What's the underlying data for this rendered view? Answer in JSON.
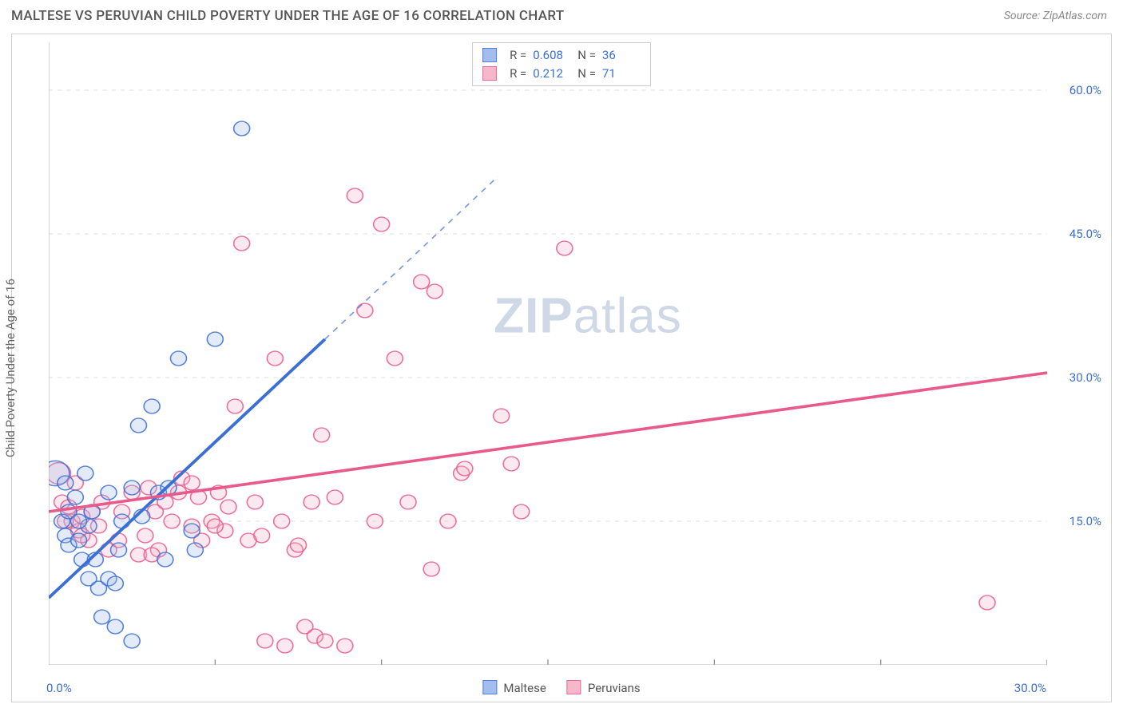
{
  "header": {
    "title": "MALTESE VS PERUVIAN CHILD POVERTY UNDER THE AGE OF 16 CORRELATION CHART",
    "source": "Source: ZipAtlas.com"
  },
  "chart": {
    "type": "scatter",
    "ylabel": "Child Poverty Under the Age of 16",
    "xlim": [
      0,
      30
    ],
    "ylim": [
      0,
      65
    ],
    "x_ticks": [
      {
        "v": 0,
        "label": "0.0%"
      },
      {
        "v": 30,
        "label": "30.0%"
      }
    ],
    "y_ticks": [
      {
        "v": 15,
        "label": "15.0%"
      },
      {
        "v": 30,
        "label": "30.0%"
      },
      {
        "v": 45,
        "label": "45.0%"
      },
      {
        "v": 60,
        "label": "60.0%"
      }
    ],
    "x_grid_at": [
      5,
      10,
      15,
      20,
      25,
      30
    ],
    "background_color": "#ffffff",
    "grid_color": "#dddddd",
    "axis_color": "#cccccc",
    "tick_label_color": "#3b6fd6",
    "marker_radius": 8,
    "marker_radius_large": 14,
    "marker_fill_opacity": 0.28,
    "marker_stroke_opacity": 0.85,
    "line_width": 2.2,
    "series": {
      "maltese": {
        "label": "Maltese",
        "color": "#3b6fd6",
        "fill": "#9ab8ea",
        "stats": {
          "R": "0.608",
          "N": "36"
        },
        "trend": {
          "x1": 0,
          "y1": 7,
          "x2": 8.3,
          "y2": 34,
          "ext_x2": 13.5,
          "ext_y2": 51
        },
        "points": [
          {
            "x": 0.2,
            "y": 20,
            "r": 14
          },
          {
            "x": 0.5,
            "y": 19
          },
          {
            "x": 0.4,
            "y": 15
          },
          {
            "x": 0.6,
            "y": 16
          },
          {
            "x": 0.5,
            "y": 13.5
          },
          {
            "x": 0.6,
            "y": 12.5
          },
          {
            "x": 0.8,
            "y": 17.5
          },
          {
            "x": 0.9,
            "y": 13
          },
          {
            "x": 1.0,
            "y": 11
          },
          {
            "x": 1.1,
            "y": 20
          },
          {
            "x": 1.2,
            "y": 9
          },
          {
            "x": 1.2,
            "y": 14.5
          },
          {
            "x": 1.3,
            "y": 16
          },
          {
            "x": 1.5,
            "y": 8
          },
          {
            "x": 1.6,
            "y": 5
          },
          {
            "x": 1.8,
            "y": 18
          },
          {
            "x": 1.8,
            "y": 9
          },
          {
            "x": 2.0,
            "y": 8.5
          },
          {
            "x": 2.0,
            "y": 4
          },
          {
            "x": 2.1,
            "y": 12
          },
          {
            "x": 2.2,
            "y": 15
          },
          {
            "x": 2.5,
            "y": 18.5
          },
          {
            "x": 2.5,
            "y": 2.5
          },
          {
            "x": 2.7,
            "y": 25
          },
          {
            "x": 3.1,
            "y": 27
          },
          {
            "x": 3.3,
            "y": 18
          },
          {
            "x": 3.5,
            "y": 11
          },
          {
            "x": 3.6,
            "y": 18.5
          },
          {
            "x": 3.9,
            "y": 32
          },
          {
            "x": 4.3,
            "y": 14
          },
          {
            "x": 4.4,
            "y": 12
          },
          {
            "x": 5.0,
            "y": 34
          },
          {
            "x": 5.8,
            "y": 56
          },
          {
            "x": 2.8,
            "y": 15.5
          },
          {
            "x": 1.4,
            "y": 11
          },
          {
            "x": 0.9,
            "y": 15
          }
        ]
      },
      "peruvians": {
        "label": "Peruvians",
        "color": "#e85a8a",
        "fill": "#f4b0c4",
        "stats": {
          "R": "0.212",
          "N": "71"
        },
        "trend": {
          "x1": 0,
          "y1": 16,
          "x2": 30,
          "y2": 30.5
        },
        "points": [
          {
            "x": 0.3,
            "y": 20,
            "r": 12
          },
          {
            "x": 0.4,
            "y": 17
          },
          {
            "x": 0.6,
            "y": 16.5
          },
          {
            "x": 0.7,
            "y": 15
          },
          {
            "x": 0.8,
            "y": 19
          },
          {
            "x": 0.9,
            "y": 14
          },
          {
            "x": 1.0,
            "y": 15.5
          },
          {
            "x": 1.2,
            "y": 13
          },
          {
            "x": 1.3,
            "y": 16
          },
          {
            "x": 1.5,
            "y": 14.5
          },
          {
            "x": 1.6,
            "y": 17
          },
          {
            "x": 1.8,
            "y": 12
          },
          {
            "x": 2.1,
            "y": 13
          },
          {
            "x": 2.2,
            "y": 16
          },
          {
            "x": 2.5,
            "y": 18
          },
          {
            "x": 2.7,
            "y": 11.5
          },
          {
            "x": 2.9,
            "y": 13.5
          },
          {
            "x": 3.0,
            "y": 18.5
          },
          {
            "x": 3.2,
            "y": 16
          },
          {
            "x": 3.3,
            "y": 12
          },
          {
            "x": 3.5,
            "y": 17
          },
          {
            "x": 3.7,
            "y": 15
          },
          {
            "x": 3.9,
            "y": 18
          },
          {
            "x": 4.0,
            "y": 19.5
          },
          {
            "x": 4.3,
            "y": 14.5
          },
          {
            "x": 4.5,
            "y": 17.5
          },
          {
            "x": 4.6,
            "y": 13
          },
          {
            "x": 4.9,
            "y": 15
          },
          {
            "x": 5.1,
            "y": 18
          },
          {
            "x": 5.3,
            "y": 14
          },
          {
            "x": 5.6,
            "y": 27
          },
          {
            "x": 5.8,
            "y": 44
          },
          {
            "x": 6.2,
            "y": 17
          },
          {
            "x": 6.4,
            "y": 13.5
          },
          {
            "x": 6.5,
            "y": 2.5
          },
          {
            "x": 6.8,
            "y": 32
          },
          {
            "x": 7.0,
            "y": 15
          },
          {
            "x": 7.1,
            "y": 2
          },
          {
            "x": 7.4,
            "y": 12
          },
          {
            "x": 7.5,
            "y": 12.5
          },
          {
            "x": 7.7,
            "y": 4
          },
          {
            "x": 7.9,
            "y": 17
          },
          {
            "x": 8.0,
            "y": 3
          },
          {
            "x": 8.2,
            "y": 24
          },
          {
            "x": 8.3,
            "y": 2.5
          },
          {
            "x": 8.6,
            "y": 17.5
          },
          {
            "x": 8.9,
            "y": 2
          },
          {
            "x": 9.2,
            "y": 49
          },
          {
            "x": 9.5,
            "y": 37
          },
          {
            "x": 9.8,
            "y": 15
          },
          {
            "x": 10.0,
            "y": 46
          },
          {
            "x": 10.4,
            "y": 32
          },
          {
            "x": 10.8,
            "y": 17
          },
          {
            "x": 11.2,
            "y": 40
          },
          {
            "x": 11.5,
            "y": 10
          },
          {
            "x": 11.6,
            "y": 39
          },
          {
            "x": 12.0,
            "y": 15
          },
          {
            "x": 12.4,
            "y": 20
          },
          {
            "x": 12.5,
            "y": 20.5
          },
          {
            "x": 13.6,
            "y": 26
          },
          {
            "x": 13.9,
            "y": 21
          },
          {
            "x": 14.2,
            "y": 16
          },
          {
            "x": 15.5,
            "y": 43.5
          },
          {
            "x": 28.2,
            "y": 6.5
          },
          {
            "x": 4.3,
            "y": 19
          },
          {
            "x": 5.0,
            "y": 14.5
          },
          {
            "x": 5.4,
            "y": 16.5
          },
          {
            "x": 3.1,
            "y": 11.5
          },
          {
            "x": 1.0,
            "y": 13.5
          },
          {
            "x": 0.5,
            "y": 15
          },
          {
            "x": 6.0,
            "y": 13
          }
        ]
      }
    },
    "legend": [
      {
        "key": "maltese",
        "label": "Maltese"
      },
      {
        "key": "peruvians",
        "label": "Peruvians"
      }
    ],
    "watermark": {
      "bold": "ZIP",
      "rest": "atlas"
    }
  }
}
